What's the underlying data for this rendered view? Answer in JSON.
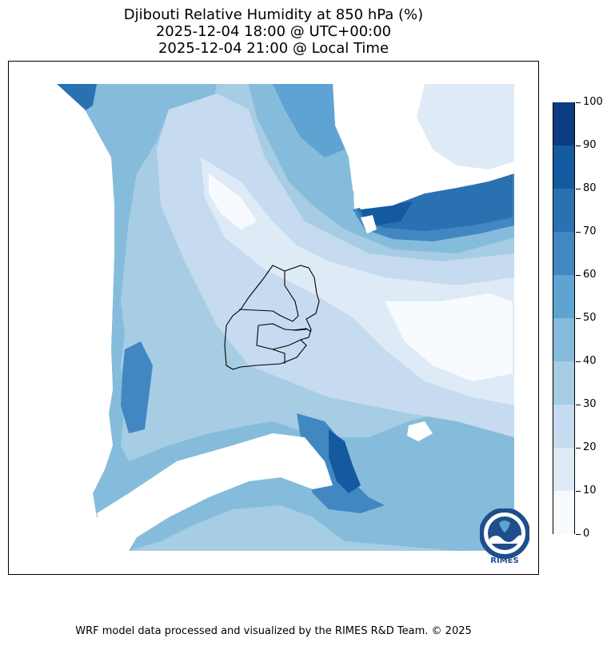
{
  "title": {
    "line1": "Djibouti Relative Humidity at 850 hPa (%)",
    "line2": "2025-12-04 18:00 @ UTC+00:00",
    "line3": "2025-12-04 21:00 @ Local Time"
  },
  "colorbar": {
    "min": 0,
    "max": 100,
    "ticks": [
      "0",
      "10",
      "20",
      "30",
      "40",
      "50",
      "60",
      "70",
      "80",
      "90",
      "100"
    ],
    "colors": [
      "#f7fbff",
      "#deebf7",
      "#c6dbef",
      "#a6cde3",
      "#86bcdb",
      "#5fa3d2",
      "#4188c2",
      "#2a71b2",
      "#145aa0",
      "#0b3d80"
    ]
  },
  "logo": {
    "text": "RIMES",
    "ring_text": "Regional Integrated Multi-Hazard Early Warning System",
    "color": "#1e4e8c"
  },
  "footer": {
    "credit": "WRF model data processed and visualized by the RIMES R&D Team. © 2025"
  }
}
